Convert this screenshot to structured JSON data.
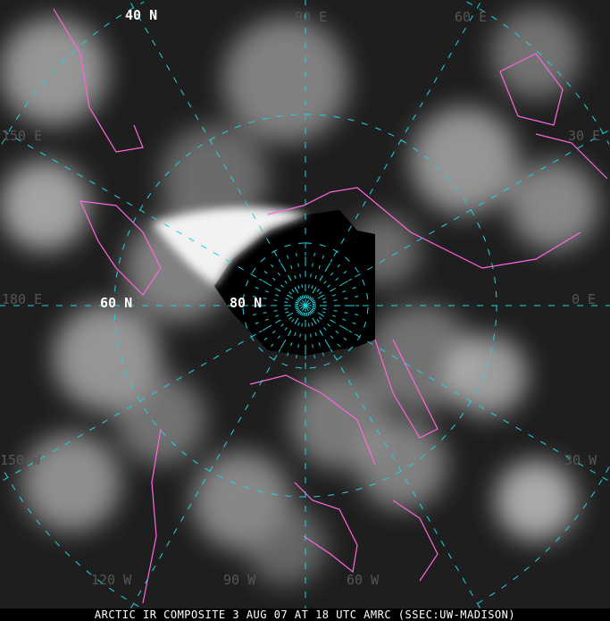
{
  "caption": "ARCTIC IR COMPOSITE 3 AUG 07 AT 18 UTC AMRC (SSEC:UW-MADISON)",
  "projection": "polar stereographic, north pole centered",
  "colors": {
    "graticule": "#22d3e0",
    "coastline": "#ff66dd",
    "background": "#000000"
  },
  "latitude_labels": [
    "40 N",
    "60 N",
    "80 N"
  ],
  "longitude_labels": [
    "90 E",
    "60 E",
    "30 E",
    "0 E",
    "150 E",
    "180 E",
    "150 W",
    "120 W",
    "90 W",
    "60 W",
    "30 W"
  ]
}
